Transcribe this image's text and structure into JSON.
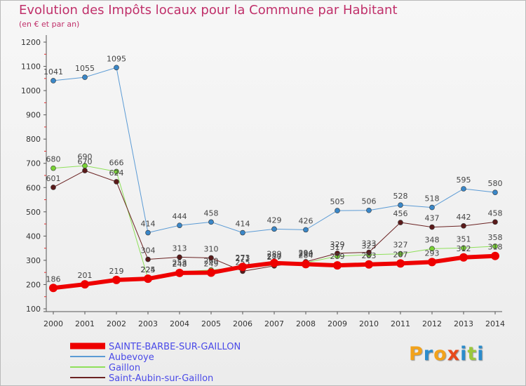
{
  "header": {
    "title": "Evolution des Impôts locaux pour la Commune par Habitant",
    "subtitle": "(en € et par an)"
  },
  "logo": {
    "text": "Proxiti",
    "colors": [
      "#f2a21b",
      "#2b8ccc",
      "#f2a21b",
      "#e84a1b",
      "#2b8ccc",
      "#9bc83b",
      "#2b8ccc"
    ]
  },
  "chart_data": {
    "type": "line",
    "title": "Evolution des Impôts locaux pour la Commune par Habitant",
    "subtitle": "(en € et par an)",
    "xlabel": "",
    "ylabel": "",
    "x": [
      "2000",
      "2001",
      "2002",
      "2003",
      "2004",
      "2005",
      "2006",
      "2007",
      "2008",
      "2009",
      "2010",
      "2011",
      "2012",
      "2013",
      "2014"
    ],
    "ylim": [
      100,
      1200
    ],
    "yticks": [
      100,
      200,
      300,
      400,
      500,
      600,
      700,
      800,
      900,
      1000,
      1100,
      1200
    ],
    "grid": false,
    "legend_position": "bottom-left",
    "series": [
      {
        "name": "Aubevoye",
        "color": "#5b9bd5",
        "marker": "#3a87c8",
        "width": 1,
        "values": [
          1041,
          1055,
          1095,
          414,
          444,
          458,
          414,
          429,
          426,
          505,
          506,
          528,
          518,
          595,
          580
        ]
      },
      {
        "name": "Gaillon",
        "color": "#8fe05a",
        "marker": "#78d234",
        "width": 1,
        "values": [
          680,
          690,
          666,
          225,
          253,
          260,
          271,
          280,
          290,
          317,
          323,
          327,
          348,
          351,
          358
        ]
      },
      {
        "name": "Saint-Aubin-sur-Gaillon",
        "color": "#6b2323",
        "marker": "#5a1a1a",
        "width": 1,
        "values": [
          601,
          670,
          624,
          304,
          313,
          310,
          255,
          277,
          294,
          329,
          333,
          456,
          437,
          442,
          458
        ]
      },
      {
        "name": "SAINTE-BARBE-SUR-GAILLON",
        "color": "#ee0000",
        "marker": "#ee0000",
        "width": 6,
        "values": [
          186,
          201,
          219,
          224,
          248,
          249,
          273,
          289,
          284,
          279,
          283,
          287,
          293,
          312,
          318
        ]
      }
    ],
    "legend": [
      {
        "name": "SAINTE-BARBE-SUR-GAILLON",
        "color": "#ee0000",
        "width": 9
      },
      {
        "name": "Aubevoye",
        "color": "#5b9bd5",
        "width": 2
      },
      {
        "name": "Gaillon",
        "color": "#8fe05a",
        "width": 2
      },
      {
        "name": "Saint-Aubin-sur-Gaillon",
        "color": "#6b2323",
        "width": 2
      }
    ]
  }
}
